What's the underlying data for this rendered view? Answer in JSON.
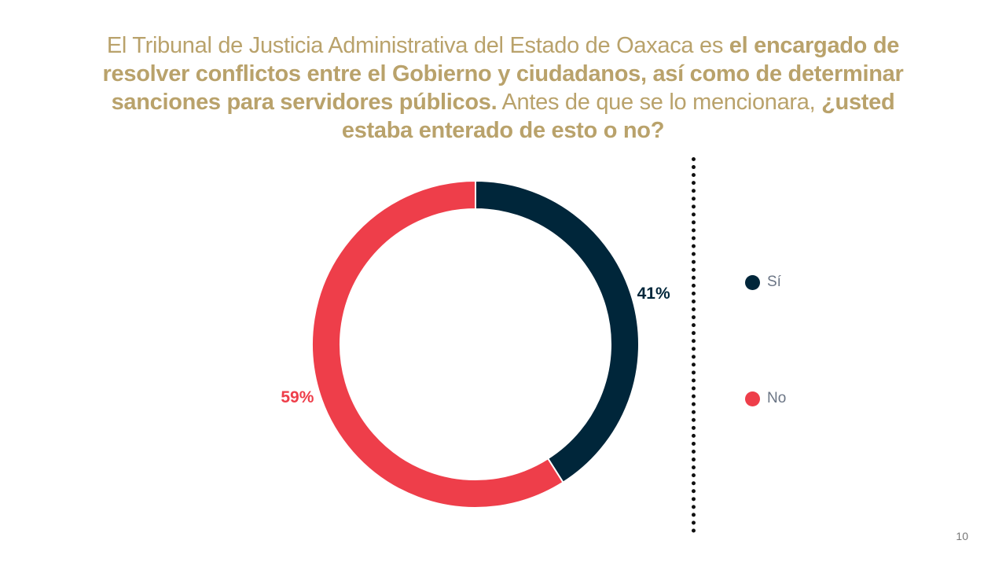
{
  "slide": {
    "title_segments": [
      {
        "text": "El Tribunal de Justicia Administrativa del Estado de Oaxaca es ",
        "bold": false
      },
      {
        "text": "el encargado de resolver conflictos entre el Gobierno y ciudadanos, así como de determinar sanciones para servidores públicos.",
        "bold": true
      },
      {
        "text": " Antes de que se lo mencionara, ",
        "bold": false
      },
      {
        "text": "¿usted estaba enterado de esto o no?",
        "bold": true
      }
    ],
    "page_number": "10",
    "title_color": "#b9a26b"
  },
  "chart_data": {
    "type": "pie",
    "donut": true,
    "categories": [
      "Sí",
      "No"
    ],
    "values": [
      41,
      59
    ],
    "data_labels": [
      "41%",
      "59%"
    ],
    "colors": [
      "#00263a",
      "#ee3e4a"
    ],
    "legend_position": "right"
  },
  "legend": {
    "items": [
      {
        "label": "Sí",
        "color": "#00263a"
      },
      {
        "label": "No",
        "color": "#ee3e4a"
      }
    ]
  }
}
